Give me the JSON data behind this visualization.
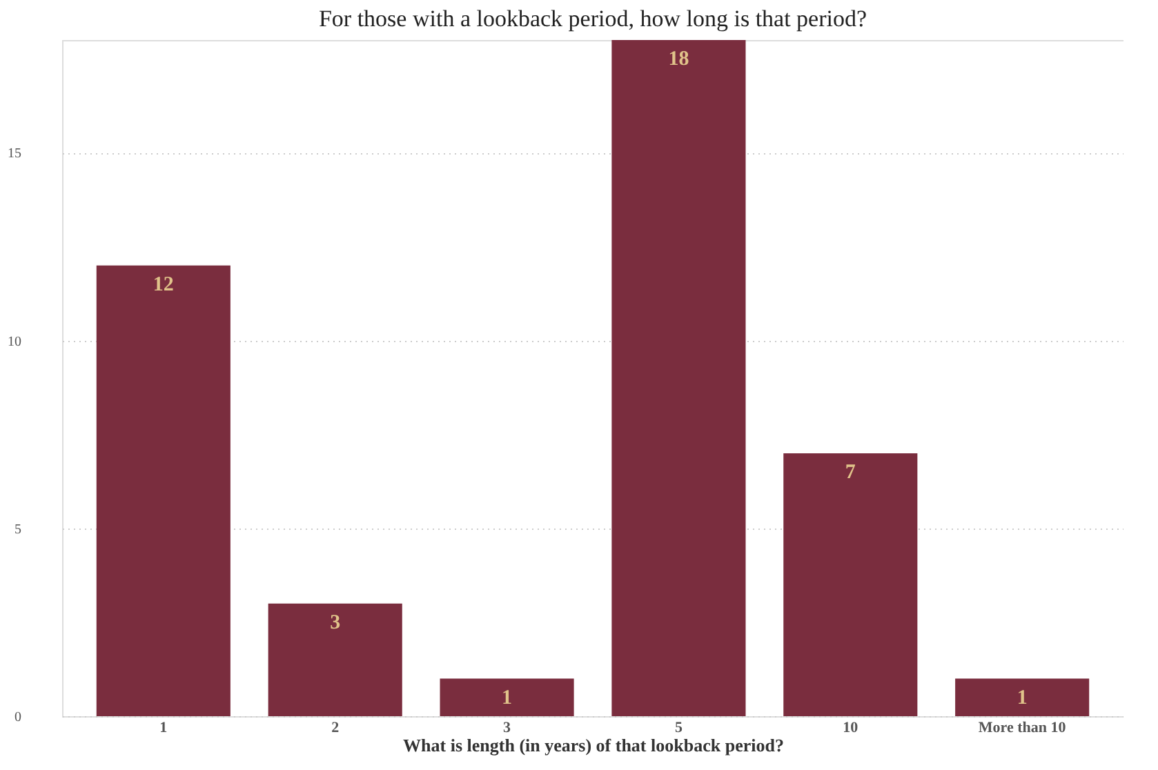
{
  "chart_data": {
    "type": "bar",
    "title": "For those with a lookback period, how long is that period?",
    "xlabel": "What is length (in years) of that lookback period?",
    "categories": [
      "1",
      "2",
      "3",
      "5",
      "10",
      "More than 10"
    ],
    "values": [
      12,
      3,
      1,
      18,
      7,
      1
    ],
    "color": "#7a2d3e",
    "ylim": [
      0,
      18
    ],
    "yticks": [
      0,
      5,
      10,
      15
    ],
    "grid": "y",
    "data_labels": true
  }
}
